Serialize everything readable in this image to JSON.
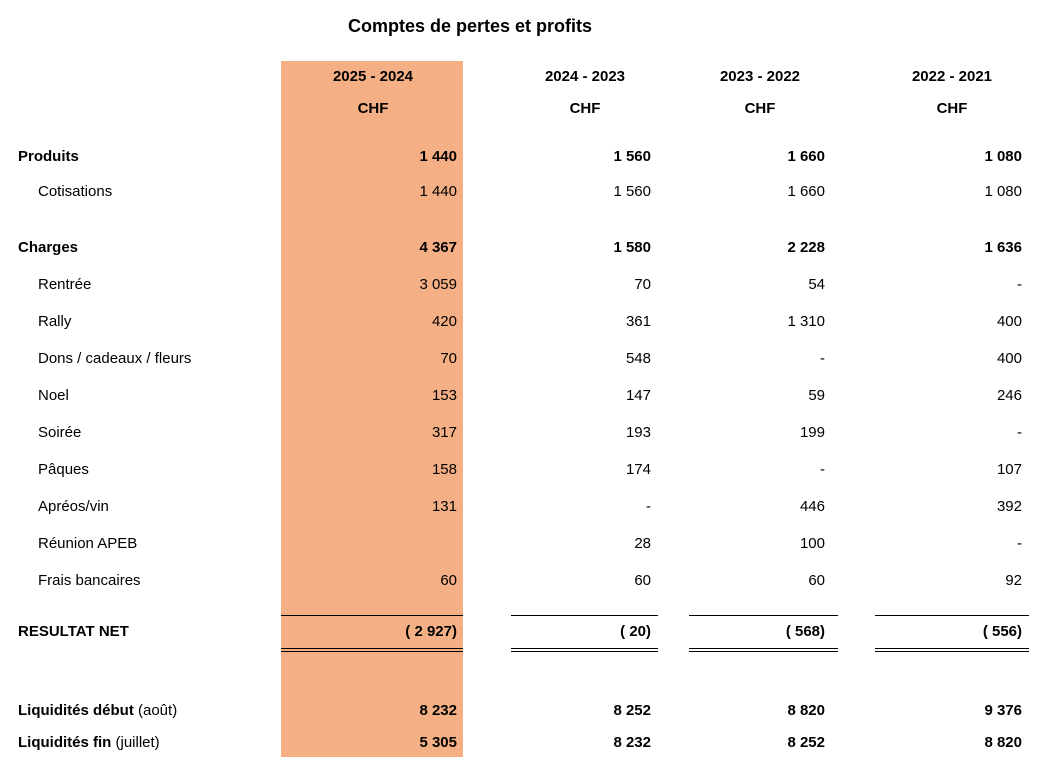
{
  "title": "Comptes de pertes et profits",
  "columns": [
    {
      "period": "2025 - 2024",
      "currency": "CHF"
    },
    {
      "period": "2024 - 2023",
      "currency": "CHF"
    },
    {
      "period": "2023 - 2022",
      "currency": "CHF"
    },
    {
      "period": "2022 - 2021",
      "currency": "CHF"
    }
  ],
  "highlight_color": "#F4B084",
  "rows": [
    {
      "label": "Produits",
      "bold": true,
      "indent": false,
      "values": [
        "1 440",
        "1 560",
        "1 660",
        "1 080"
      ]
    },
    {
      "label": "Cotisations",
      "bold": false,
      "indent": true,
      "values": [
        "1 440",
        "1 560",
        "1 660",
        "1 080"
      ]
    },
    {
      "label": "Charges",
      "bold": true,
      "indent": false,
      "values": [
        "4 367",
        "1 580",
        "2 228",
        "1 636"
      ]
    },
    {
      "label": "Rentrée",
      "bold": false,
      "indent": true,
      "values": [
        "3 059",
        "70",
        "54",
        "-"
      ]
    },
    {
      "label": "Rally",
      "bold": false,
      "indent": true,
      "values": [
        "420",
        "361",
        "1 310",
        "400"
      ]
    },
    {
      "label": "Dons / cadeaux / fleurs",
      "bold": false,
      "indent": true,
      "values": [
        "70",
        "548",
        "-",
        "400"
      ]
    },
    {
      "label": "Noel",
      "bold": false,
      "indent": true,
      "values": [
        "153",
        "147",
        "59",
        "246"
      ]
    },
    {
      "label": "Soirée",
      "bold": false,
      "indent": true,
      "values": [
        "317",
        "193",
        "199",
        "-"
      ]
    },
    {
      "label": "Pâques",
      "bold": false,
      "indent": true,
      "values": [
        "158",
        "174",
        "-",
        "107"
      ]
    },
    {
      "label": "Apréos/vin",
      "bold": false,
      "indent": true,
      "values": [
        "131",
        "-",
        "446",
        "392"
      ]
    },
    {
      "label": "Réunion APEB",
      "bold": false,
      "indent": true,
      "values": [
        "",
        "28",
        "100",
        "-"
      ]
    },
    {
      "label": "Frais bancaires",
      "bold": false,
      "indent": true,
      "values": [
        "60",
        "60",
        "60",
        "92"
      ]
    },
    {
      "label": "RESULTAT NET",
      "bold": true,
      "indent": false,
      "values": [
        "( 2 927)",
        "(  20)",
        "(  568)",
        "(  556)"
      ]
    },
    {
      "label": "Liquidités début",
      "label_suffix": "(août)",
      "bold": true,
      "indent": false,
      "values": [
        "8 232",
        "8 252",
        "8 820",
        "9 376"
      ]
    },
    {
      "label": "Liquidités fin",
      "label_suffix": "(juillet)",
      "bold": true,
      "indent": false,
      "values": [
        "5 305",
        "8 232",
        "8 252",
        "8 820"
      ]
    }
  ]
}
